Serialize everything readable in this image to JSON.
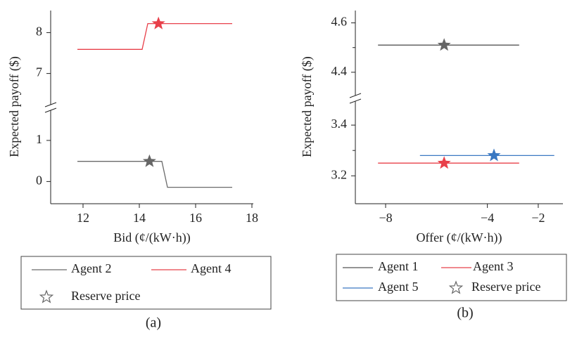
{
  "chart_data": [
    {
      "type": "line",
      "caption": "(a)",
      "xlabel": "Bid (¢/(kW·h))",
      "ylabel": "Expected payoff ($)",
      "xlim": [
        10.85,
        18.05
      ],
      "xticks": [
        12,
        14,
        16,
        18
      ],
      "ylim": [
        -0.54,
        8.54
      ],
      "y_break": [
        1.75,
        6.22
      ],
      "yticks": [
        0,
        1,
        7,
        8
      ],
      "series": [
        {
          "name": "Agent 2",
          "color": "#6b6b6b",
          "x": [
            11.8,
            14.8,
            15.0,
            17.3
          ],
          "values": [
            0.49,
            0.49,
            -0.14,
            -0.14
          ]
        },
        {
          "name": "Agent 4",
          "color": "#e8404a",
          "x": [
            11.8,
            14.1,
            14.3,
            17.3
          ],
          "values": [
            7.59,
            7.59,
            8.22,
            8.22
          ]
        },
        {
          "name": "Reserve price",
          "marker": "star",
          "colors": [
            "#666666",
            "#e8404a"
          ],
          "x": [
            14.36,
            14.68
          ],
          "values": [
            0.49,
            8.22
          ]
        }
      ]
    },
    {
      "type": "line",
      "caption": "(b)",
      "xlabel": "Offer (¢/(kW·h))",
      "ylabel": "Expected payoff ($)",
      "xlim": [
        -9.19,
        -1.03
      ],
      "xticks": [
        {
          "value": -8,
          "label": "−8"
        },
        {
          "value": -4,
          "label": "−4"
        },
        {
          "value": -2,
          "label": "−2"
        }
      ],
      "ylim": [
        3.09,
        4.65
      ],
      "y_break": [
        3.5,
        4.3
      ],
      "yticks": [
        3.2,
        3.4,
        4.4,
        4.6
      ],
      "yminor": [
        3.3,
        4.5
      ],
      "series": [
        {
          "name": "Agent 1",
          "color": "#555555",
          "x": [
            -8.3,
            -2.75
          ],
          "values": [
            4.51,
            4.51
          ]
        },
        {
          "name": "Agent 3",
          "color": "#e8404a",
          "x": [
            -8.3,
            -2.75
          ],
          "values": [
            3.25,
            3.25
          ]
        },
        {
          "name": "Agent 5",
          "color": "#3a78c2",
          "x": [
            -6.65,
            -1.37
          ],
          "values": [
            3.28,
            3.28
          ]
        },
        {
          "name": "Reserve price",
          "marker": "star",
          "colors": [
            "#666666",
            "#e8404a",
            "#3a78c2"
          ],
          "x": [
            -5.7,
            -5.7,
            -3.74
          ],
          "values": [
            4.51,
            3.25,
            3.28
          ]
        }
      ]
    }
  ]
}
